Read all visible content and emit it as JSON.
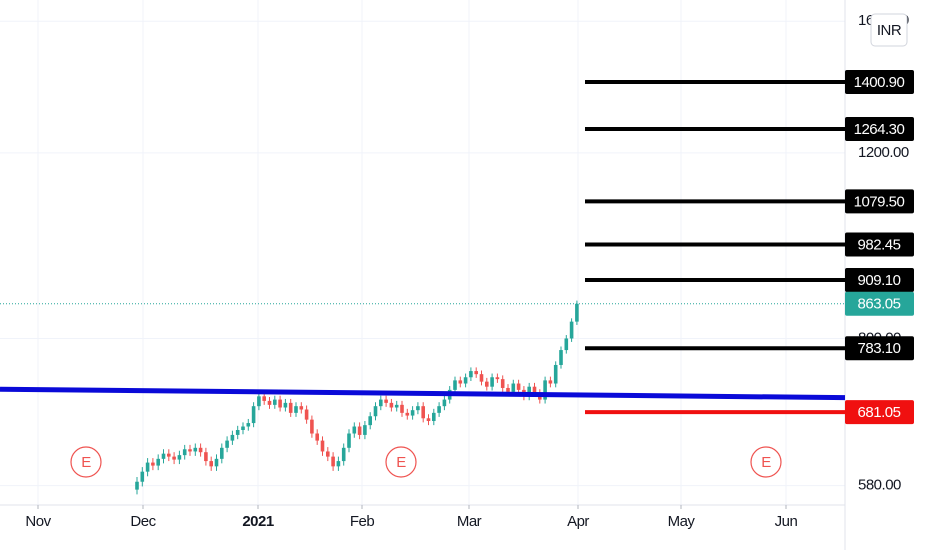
{
  "chart_data": {
    "type": "candlestick",
    "currency": "INR",
    "log_scale": true,
    "grid": true,
    "ylim": [
      556,
      1676
    ],
    "yticks": [
      {
        "value": 580,
        "label": "580.00"
      },
      {
        "value": 800,
        "label": "800.00"
      },
      {
        "value": 1200,
        "label": "1200.00"
      },
      {
        "value": 1600,
        "label": "1600.00"
      }
    ],
    "categories": [
      "Nov",
      "Dec",
      "2021",
      "Feb",
      "Mar",
      "Apr",
      "May",
      "Jun"
    ],
    "up_color": "#26a69a",
    "down_color": "#ef5350",
    "open": [
      575,
      585,
      598,
      610,
      606,
      615,
      622,
      618,
      614,
      620,
      628,
      625,
      630,
      624,
      612,
      605,
      615,
      630,
      640,
      648,
      655,
      660,
      665,
      690,
      705,
      698,
      692,
      700,
      688,
      695,
      680,
      690,
      685,
      670,
      650,
      640,
      625,
      618,
      605,
      612,
      630,
      650,
      660,
      648,
      662,
      675,
      690,
      700,
      695,
      688,
      692,
      680,
      676,
      684,
      690,
      672,
      668,
      680,
      690,
      700,
      715,
      730,
      725,
      735,
      745,
      740,
      728,
      720,
      735,
      732,
      718,
      712,
      725,
      715,
      705,
      720,
      710,
      700,
      730,
      725,
      755,
      780,
      800,
      830
    ],
    "high": [
      591,
      604,
      616,
      616,
      621,
      628,
      628,
      624,
      626,
      634,
      634,
      636,
      636,
      630,
      618,
      621,
      636,
      646,
      654,
      661,
      666,
      671,
      696,
      711,
      711,
      704,
      706,
      706,
      701,
      701,
      696,
      696,
      691,
      676,
      656,
      646,
      631,
      624,
      618,
      636,
      656,
      666,
      666,
      668,
      681,
      696,
      706,
      706,
      701,
      698,
      698,
      686,
      690,
      696,
      696,
      678,
      686,
      696,
      706,
      721,
      736,
      736,
      741,
      751,
      751,
      746,
      734,
      741,
      741,
      738,
      724,
      731,
      731,
      721,
      726,
      726,
      716,
      736,
      736,
      761,
      786,
      806,
      836,
      869
    ],
    "low": [
      569,
      579,
      592,
      600,
      600,
      609,
      612,
      608,
      608,
      614,
      619,
      619,
      618,
      606,
      599,
      599,
      609,
      624,
      634,
      642,
      649,
      654,
      659,
      684,
      692,
      686,
      686,
      682,
      682,
      674,
      674,
      679,
      664,
      644,
      634,
      619,
      612,
      599,
      599,
      606,
      624,
      644,
      642,
      642,
      656,
      669,
      684,
      689,
      682,
      682,
      674,
      670,
      670,
      678,
      666,
      662,
      662,
      674,
      684,
      694,
      709,
      719,
      719,
      729,
      734,
      722,
      714,
      714,
      726,
      712,
      706,
      706,
      709,
      699,
      699,
      704,
      694,
      694,
      719,
      719,
      749,
      774,
      794,
      824
    ],
    "close": [
      585,
      598,
      610,
      606,
      615,
      622,
      618,
      614,
      620,
      628,
      625,
      630,
      624,
      612,
      605,
      615,
      630,
      640,
      648,
      655,
      660,
      665,
      690,
      705,
      698,
      692,
      700,
      688,
      695,
      680,
      690,
      685,
      670,
      650,
      640,
      625,
      618,
      605,
      612,
      630,
      650,
      660,
      648,
      662,
      675,
      690,
      700,
      695,
      688,
      692,
      680,
      676,
      684,
      690,
      672,
      668,
      680,
      690,
      700,
      715,
      730,
      725,
      735,
      745,
      740,
      728,
      720,
      735,
      732,
      718,
      712,
      725,
      715,
      705,
      720,
      710,
      700,
      730,
      725,
      755,
      780,
      800,
      830,
      863
    ],
    "levels": {
      "values": [
        1400.9,
        1264.3,
        1079.5,
        982.45,
        909.1,
        783.1,
        681.05
      ],
      "value_labels": [
        "1400.90",
        "1264.30",
        "1079.50",
        "982.45",
        "909.10",
        "783.10",
        "681.05"
      ],
      "colors": [
        "#000000",
        "#000000",
        "#000000",
        "#000000",
        "#000000",
        "#000000",
        "#f01010"
      ]
    },
    "last_price": {
      "value": 863.05,
      "label": "863.05",
      "color": "#26a69a"
    },
    "trendline": {
      "values": [
        716,
        703
      ],
      "color": "#0a0ad8"
    },
    "earnings_markers": [
      "E",
      "E",
      "E"
    ]
  }
}
